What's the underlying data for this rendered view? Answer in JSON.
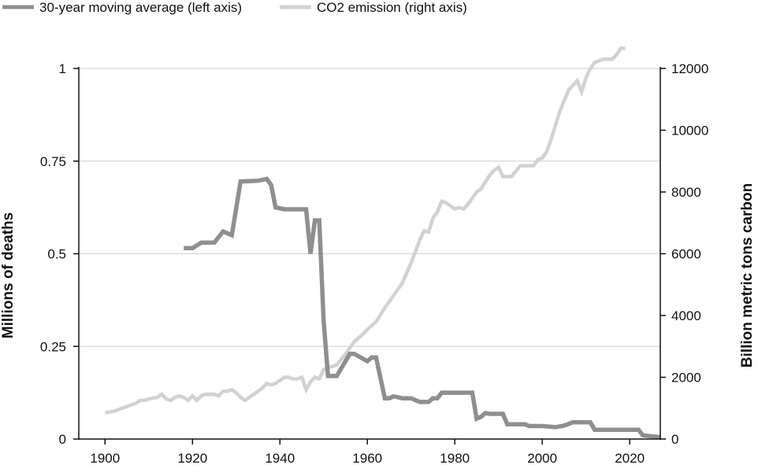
{
  "chart_data": {
    "type": "line",
    "title": "",
    "x_ticks": [
      "1900",
      "1920",
      "1940",
      "1960",
      "1980",
      "2000",
      "2020"
    ],
    "xlim": [
      1894,
      2027
    ],
    "y_left": {
      "label": "Millions of deaths",
      "ticks": [
        "0",
        "0.25",
        "0.5",
        "0.75",
        "1"
      ],
      "ylim": [
        0,
        1
      ]
    },
    "y_right": {
      "label": "Billion metric tons carbon",
      "ticks": [
        "0",
        "2000",
        "4000",
        "6000",
        "8000",
        "10000",
        "12000"
      ],
      "ylim": [
        0,
        12000
      ]
    },
    "grid": true,
    "legend_position": "top-left",
    "series": [
      {
        "name": "30-year moving average (left axis)",
        "axis": "left",
        "color": "#8f8f8f",
        "x": [
          1918,
          1920,
          1922,
          1925,
          1927,
          1929,
          1931,
          1935,
          1937,
          1938,
          1939,
          1941,
          1946,
          1947,
          1948,
          1949,
          1950,
          1951,
          1952,
          1953,
          1956,
          1957,
          1960,
          1961,
          1962,
          1964,
          1965,
          1966,
          1968,
          1970,
          1972,
          1974,
          1975,
          1976,
          1977,
          1978,
          1984,
          1985,
          1986,
          1987,
          1988,
          1991,
          1992,
          1996,
          1997,
          2000,
          2003,
          2005,
          2007,
          2011,
          2012,
          2022,
          2023,
          2027
        ],
        "y": [
          0.515,
          0.515,
          0.53,
          0.53,
          0.56,
          0.55,
          0.695,
          0.697,
          0.702,
          0.685,
          0.625,
          0.62,
          0.62,
          0.5,
          0.59,
          0.59,
          0.32,
          0.17,
          0.17,
          0.17,
          0.23,
          0.23,
          0.21,
          0.22,
          0.22,
          0.11,
          0.11,
          0.115,
          0.11,
          0.11,
          0.1,
          0.1,
          0.11,
          0.11,
          0.125,
          0.125,
          0.125,
          0.055,
          0.06,
          0.07,
          0.068,
          0.068,
          0.04,
          0.04,
          0.035,
          0.035,
          0.032,
          0.036,
          0.045,
          0.045,
          0.025,
          0.025,
          0.01,
          0.005
        ]
      },
      {
        "name": "CO2 emission (right axis)",
        "axis": "right",
        "color": "#d2d2d2",
        "x": [
          1900,
          1902,
          1904,
          1906,
          1907,
          1908,
          1909,
          1910,
          1912,
          1913,
          1914,
          1915,
          1916,
          1917,
          1918,
          1919,
          1920,
          1921,
          1922,
          1923,
          1925,
          1926,
          1927,
          1928,
          1929,
          1930,
          1931,
          1932,
          1933,
          1934,
          1935,
          1936,
          1937,
          1938,
          1939,
          1940,
          1941,
          1942,
          1943,
          1944,
          1945,
          1946,
          1947,
          1948,
          1949,
          1950,
          1951,
          1952,
          1953,
          1955,
          1957,
          1959,
          1960,
          1962,
          1964,
          1966,
          1968,
          1970,
          1972,
          1973,
          1974,
          1975,
          1976,
          1977,
          1978,
          1979,
          1980,
          1981,
          1982,
          1983,
          1985,
          1986,
          1988,
          1989,
          1990,
          1991,
          1992,
          1993,
          1995,
          1996,
          1998,
          1999,
          2000,
          2001,
          2002,
          2004,
          2006,
          2008,
          2009,
          2010,
          2011,
          2012,
          2014,
          2016,
          2017,
          2018,
          2019
        ],
        "y": [
          850,
          900,
          1000,
          1100,
          1150,
          1250,
          1250,
          1300,
          1350,
          1450,
          1300,
          1250,
          1350,
          1400,
          1350,
          1250,
          1400,
          1250,
          1400,
          1450,
          1450,
          1400,
          1550,
          1550,
          1600,
          1500,
          1350,
          1250,
          1350,
          1450,
          1550,
          1650,
          1800,
          1750,
          1800,
          1900,
          2000,
          2000,
          1950,
          1950,
          2000,
          1600,
          1850,
          2000,
          1950,
          2250,
          2300,
          2350,
          2400,
          2750,
          3150,
          3400,
          3550,
          3800,
          4250,
          4650,
          5050,
          5700,
          6450,
          6750,
          6700,
          7150,
          7350,
          7700,
          7650,
          7550,
          7450,
          7500,
          7450,
          7600,
          8000,
          8100,
          8550,
          8700,
          8800,
          8500,
          8500,
          8500,
          8850,
          8850,
          8850,
          9050,
          9100,
          9300,
          9700,
          10600,
          11300,
          11600,
          11250,
          11700,
          12000,
          12200,
          12300,
          12300,
          12450,
          12650,
          12650
        ]
      }
    ]
  },
  "colors": {
    "grid": "#d6d6d6",
    "axis": "#111111"
  }
}
